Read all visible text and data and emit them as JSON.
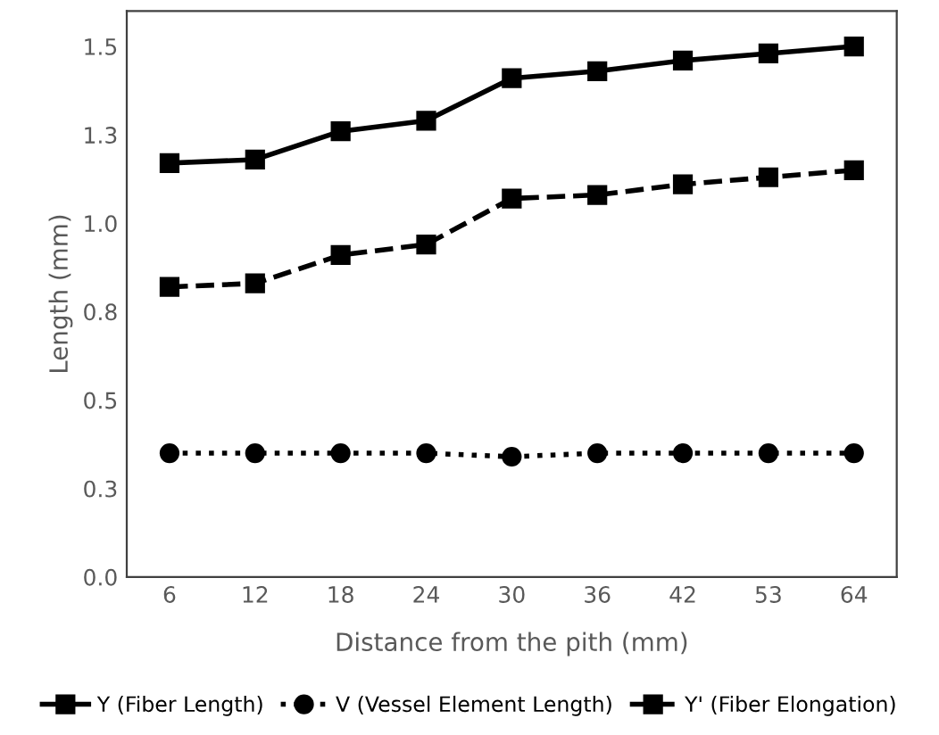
{
  "chart_data": {
    "type": "line",
    "xlabel": "Distance from the pith (mm)",
    "ylabel": "Length (mm)",
    "categories": [
      "6",
      "12",
      "18",
      "24",
      "30",
      "36",
      "42",
      "53",
      "64"
    ],
    "series": [
      {
        "name": "Y (Fiber Length)",
        "color": "#000000",
        "marker": "square",
        "line_style": "solid",
        "values": [
          1.17,
          1.18,
          1.26,
          1.29,
          1.41,
          1.43,
          1.46,
          1.48,
          1.5
        ]
      },
      {
        "name": "V (Vessel Element Length)",
        "color": "#000000",
        "marker": "circle",
        "line_style": "dotted",
        "values": [
          0.35,
          0.35,
          0.35,
          0.35,
          0.34,
          0.35,
          0.35,
          0.35,
          0.35
        ]
      },
      {
        "name": "Y' (Fiber Elongation)",
        "color": "#000000",
        "marker": "square",
        "line_style": "dashed",
        "values": [
          0.82,
          0.83,
          0.91,
          0.94,
          1.07,
          1.08,
          1.11,
          1.13,
          1.15
        ]
      }
    ],
    "ylim": [
      0,
      1.6
    ],
    "yticks": [
      {
        "value": 0,
        "label": "0.0"
      },
      {
        "value": 0.25,
        "label": "0.3"
      },
      {
        "value": 0.5,
        "label": "0.5"
      },
      {
        "value": 0.75,
        "label": "0.8"
      },
      {
        "value": 1.0,
        "label": "1.0"
      },
      {
        "value": 1.25,
        "label": "1.3"
      },
      {
        "value": 1.5,
        "label": "1.5"
      }
    ],
    "grid": false,
    "legend": "bottom"
  }
}
